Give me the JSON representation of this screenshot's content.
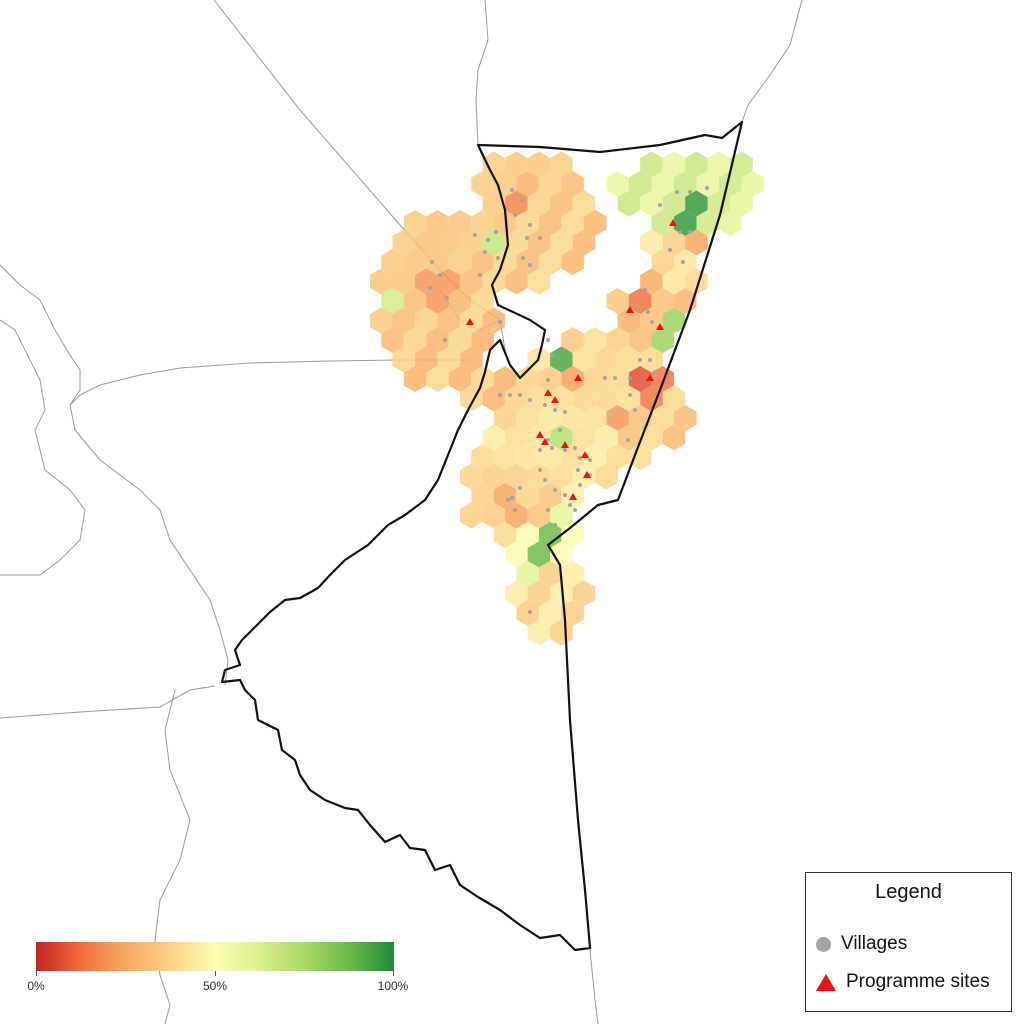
{
  "legend": {
    "title": "Legend",
    "items": [
      {
        "label": "Villages",
        "symbol": "grey-dot-icon",
        "color": "#a3a3a3"
      },
      {
        "label": "Programme sites",
        "symbol": "red-triangle-icon",
        "color": "#ee1111"
      }
    ]
  },
  "scale": {
    "min_label": "0%",
    "mid_label": "50%",
    "max_label": "100%",
    "colors": [
      "#c5221f",
      "#f06a3c",
      "#f8a55e",
      "#fbd487",
      "#fdfcb4",
      "#dcf08e",
      "#a9d963",
      "#6ab84a",
      "#1f8a3b"
    ]
  },
  "colors": {
    "boundary": "#111111",
    "neighbour_border": "#9a9a9a",
    "village": "#a3a3a3",
    "programme_site": "#ee1111"
  }
}
